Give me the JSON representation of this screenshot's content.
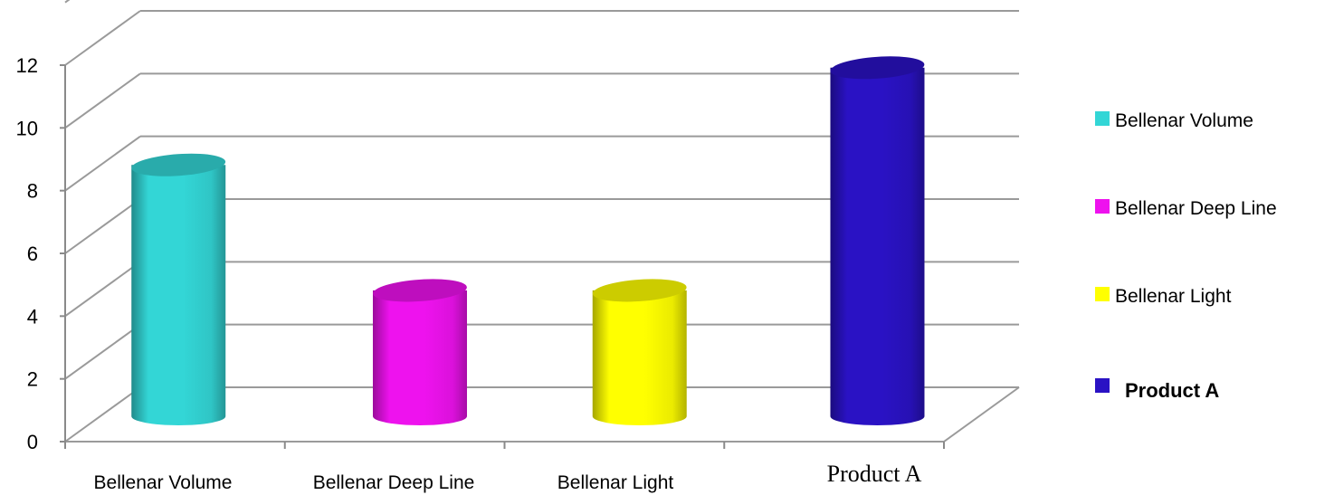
{
  "chart_data": {
    "type": "bar",
    "style": "3d-cylinder",
    "categories": [
      "Bellenar  Volume",
      "Bellenar  Deep Line",
      "Bellenar  Light",
      "Product A"
    ],
    "values": [
      8.3,
      4.3,
      4.3,
      11.4
    ],
    "colors": [
      "#33d6d6",
      "#ee12ee",
      "#ffff00",
      "#2a12c4"
    ],
    "ylim": [
      0,
      12
    ],
    "yticks": [
      "0",
      "2",
      "4",
      "6",
      "8",
      "10",
      "12"
    ],
    "grid": true,
    "legend": {
      "position": "right",
      "entries": [
        "Bellenar  Volume",
        "Bellenar  Deep Line",
        "Bellenar  Light",
        "Product A"
      ]
    }
  }
}
